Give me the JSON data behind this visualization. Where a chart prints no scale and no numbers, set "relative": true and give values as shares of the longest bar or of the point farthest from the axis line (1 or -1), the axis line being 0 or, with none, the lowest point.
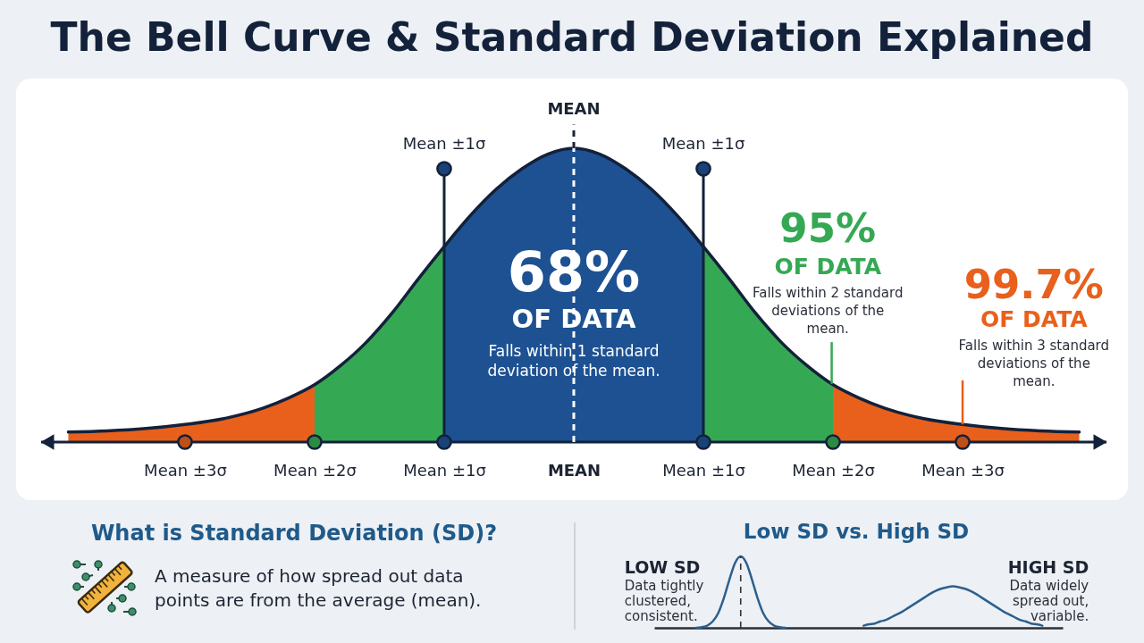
{
  "chart_data": [
    {
      "type": "area",
      "title": "The Bell Curve & Standard Deviation Explained",
      "relative": true,
      "xlim": [
        -4.11,
        4.11
      ],
      "xticks": [
        {
          "value": -3,
          "label": "Mean ±3σ"
        },
        {
          "value": -2,
          "label": "Mean ±2σ"
        },
        {
          "value": -1,
          "label": "Mean ±1σ"
        },
        {
          "value": 0,
          "label": "MEAN"
        },
        {
          "value": 1,
          "label": "Mean ±1σ"
        },
        {
          "value": 2,
          "label": "Mean ±2σ"
        },
        {
          "value": 3,
          "label": "Mean ±3σ"
        }
      ],
      "tick_labels": "x",
      "series": [
        {
          "type": "area",
          "color": "#e8601c",
          "x": [
            -3.9,
            -3.6,
            -3.3,
            -3,
            -2.7,
            -2.4,
            -2.2,
            -2
          ],
          "values": [
            0.034,
            0.038,
            0.046,
            0.06,
            0.08,
            0.115,
            0.15,
            0.195
          ]
        },
        {
          "type": "area",
          "color": "#35a853",
          "x": [
            -2,
            -1.8,
            -1.6,
            -1.4,
            -1.2,
            -1
          ],
          "values": [
            0.195,
            0.26,
            0.34,
            0.44,
            0.555,
            0.665
          ]
        },
        {
          "type": "area",
          "color": "#1d5192",
          "x": [
            -1,
            -0.8,
            -0.6,
            -0.4,
            -0.2,
            0,
            0.2,
            0.4,
            0.6,
            0.8,
            1
          ],
          "values": [
            0.665,
            0.77,
            0.86,
            0.93,
            0.98,
            1,
            0.98,
            0.93,
            0.86,
            0.77,
            0.665
          ]
        },
        {
          "type": "area",
          "color": "#35a853",
          "x": [
            1,
            1.2,
            1.4,
            1.6,
            1.8,
            2
          ],
          "values": [
            0.665,
            0.555,
            0.44,
            0.34,
            0.26,
            0.195
          ]
        },
        {
          "type": "area",
          "color": "#e8601c",
          "x": [
            2,
            2.2,
            2.4,
            2.7,
            3,
            3.3,
            3.6,
            3.9
          ],
          "values": [
            0.195,
            0.15,
            0.115,
            0.08,
            0.06,
            0.046,
            0.038,
            0.034
          ]
        },
        {
          "type": "line",
          "color": "#13213a",
          "x": [
            -3.9,
            -3.6,
            -3.3,
            -3,
            -2.7,
            -2.4,
            -2.2,
            -2,
            -1.8,
            -1.6,
            -1.4,
            -1.2,
            -1,
            -0.8,
            -0.6,
            -0.4,
            -0.2,
            0,
            0.2,
            0.4,
            0.6,
            0.8,
            1,
            1.2,
            1.4,
            1.6,
            1.8,
            2,
            2.2,
            2.4,
            2.7,
            3,
            3.3,
            3.6,
            3.9
          ],
          "values": [
            0.034,
            0.038,
            0.046,
            0.06,
            0.08,
            0.115,
            0.15,
            0.195,
            0.26,
            0.34,
            0.44,
            0.555,
            0.665,
            0.77,
            0.86,
            0.93,
            0.98,
            1,
            0.98,
            0.93,
            0.86,
            0.77,
            0.665,
            0.555,
            0.44,
            0.34,
            0.26,
            0.195,
            0.15,
            0.115,
            0.08,
            0.06,
            0.046,
            0.038,
            0.034
          ]
        }
      ],
      "ref_lines": [
        {
          "axis": "x",
          "value": -1,
          "label": "Mean ±1σ",
          "color": "#13213a"
        },
        {
          "axis": "x",
          "value": 0,
          "label": "MEAN",
          "color": "#ffffff",
          "line_style": "dashed"
        },
        {
          "axis": "x",
          "value": 1,
          "label": "Mean ±1σ",
          "color": "#13213a"
        }
      ],
      "annotations": [
        "68%",
        "OF DATA",
        "Falls within 1 standard deviation of the mean.",
        "95%",
        "OF DATA",
        "Falls within 2 standard deviations of the mean.",
        "99.7%",
        "OF DATA",
        "Falls within 3 standard deviations of the mean."
      ]
    },
    {
      "type": "other",
      "title": "What is Standard Deviation (SD)?",
      "annotations": [
        "A measure of how spread out data points are from the average (mean)."
      ]
    },
    {
      "type": "line",
      "title": "Low SD vs. High SD",
      "relative": true,
      "tick_labels": false,
      "categories": [
        null,
        null,
        null,
        null,
        null,
        null,
        null,
        null,
        null,
        null,
        null,
        null,
        null,
        null,
        null,
        null,
        null,
        null,
        null,
        null,
        null,
        null,
        null,
        null,
        null,
        null,
        null,
        null,
        null,
        null,
        null,
        null,
        null,
        null,
        null,
        null,
        null,
        null,
        null,
        null,
        null,
        null,
        null,
        null,
        null,
        null,
        null,
        null,
        null,
        null,
        null,
        null,
        null,
        null,
        null,
        null,
        null,
        null,
        null,
        null,
        null,
        null,
        null
      ],
      "series": [
        {
          "name": "LOW SD",
          "color": "#2d5f8c",
          "values": [
            0,
            0.01,
            0.03,
            0.09,
            0.21,
            0.42,
            0.68,
            0.91,
            1,
            0.91,
            0.68,
            0.42,
            0.21,
            0.09,
            0.03,
            0.01,
            0,
            null,
            null,
            null,
            null,
            null,
            null,
            null,
            null,
            null,
            null,
            null,
            null,
            null,
            null,
            null,
            null,
            null,
            null,
            null,
            null,
            null,
            null,
            null,
            null,
            null,
            null,
            null,
            null,
            null,
            null,
            null,
            null,
            null,
            null,
            null,
            null,
            null,
            null,
            null,
            null,
            null,
            null,
            null,
            null,
            null,
            null
          ]
        },
        {
          "name": "HIGH SD",
          "color": "#2d5f8c",
          "values": [
            null,
            null,
            null,
            null,
            null,
            null,
            null,
            null,
            null,
            null,
            null,
            null,
            null,
            null,
            null,
            null,
            null,
            null,
            null,
            null,
            null,
            null,
            null,
            null,
            null,
            null,
            null,
            null,
            null,
            null,
            0.03,
            0.05,
            0.06,
            0.09,
            0.11,
            0.15,
            0.19,
            0.23,
            0.28,
            0.33,
            0.38,
            0.43,
            0.48,
            0.52,
            0.55,
            0.57,
            0.58,
            0.57,
            0.55,
            0.52,
            0.48,
            0.43,
            0.38,
            0.33,
            0.28,
            0.23,
            0.19,
            0.15,
            0.11,
            0.09,
            0.06,
            0.05,
            0.03
          ]
        }
      ],
      "annotations": [
        "Data tightly clustered, consistent.",
        "Data widely spread out, variable."
      ]
    }
  ]
}
